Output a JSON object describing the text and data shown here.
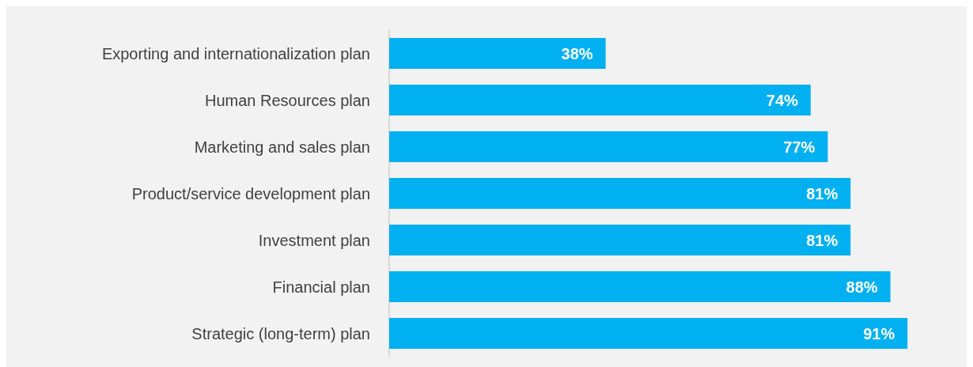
{
  "chart_data": {
    "type": "bar",
    "orientation": "horizontal",
    "categories": [
      "Exporting and internationalization plan",
      "Human Resources plan",
      "Marketing and sales plan",
      "Product/service development plan",
      "Investment plan",
      "Financial plan",
      "Strategic (long-term) plan"
    ],
    "values": [
      38,
      74,
      77,
      81,
      81,
      88,
      91
    ],
    "value_labels": [
      "38%",
      "74%",
      "77%",
      "81%",
      "81%",
      "88%",
      "91%"
    ],
    "color": "#00b0f0",
    "tick_labels": "y"
  }
}
